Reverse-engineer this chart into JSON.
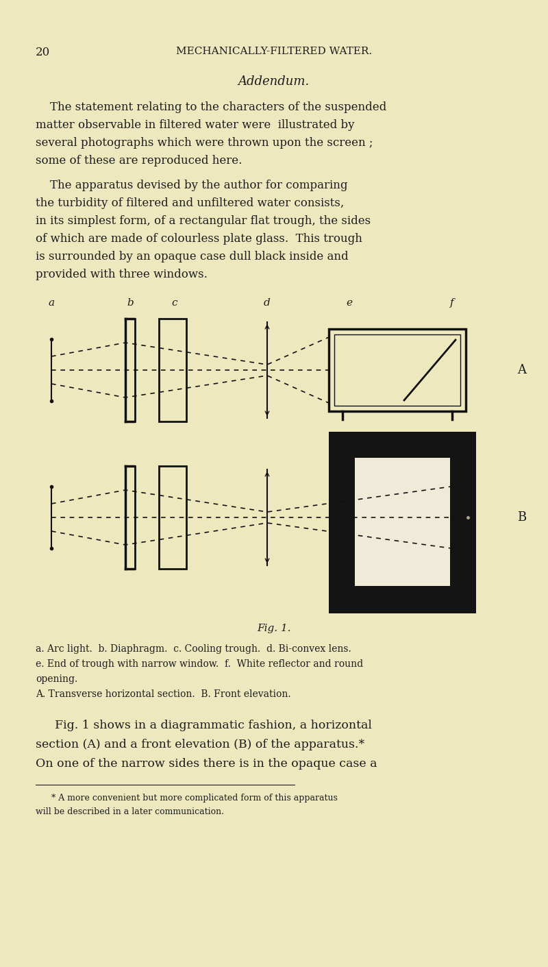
{
  "bg_color": "#ede8be",
  "text_color": "#1c1c1c",
  "dark_color": "#111111",
  "page_width": 8.0,
  "page_height": 14.11,
  "header_page_num": "20",
  "header_title": "MECHANICALLY-FILTERED WATER.",
  "section_title": "Addendum.",
  "label_a": "a",
  "label_b": "b",
  "label_c": "c",
  "label_d": "d",
  "label_e": "e",
  "label_f": "f",
  "label_A": "A",
  "label_B": "B",
  "fig_title": "Fig. 1.",
  "cap1": "a. Arc light.  b. Diaphragm.  c. Cooling trough.  d. Bi-convex lens.",
  "cap2": "e. End of trough with narrow window.  f.  White reflector and round",
  "cap3": "opening.",
  "cap4": "A. Transverse horizontal section.  B. Front elevation.",
  "p3_line1": "Fig. 1 shows in a diagrammatic fashion, a horizontal",
  "p3_line2": "section (A) and a front elevation (B) of the apparatus.*",
  "p3_line3": "On one of the narrow sides there is in the opaque case a",
  "fn1": "* A more convenient but more complicated form of this apparatus",
  "fn2": "will be described in a later communication."
}
